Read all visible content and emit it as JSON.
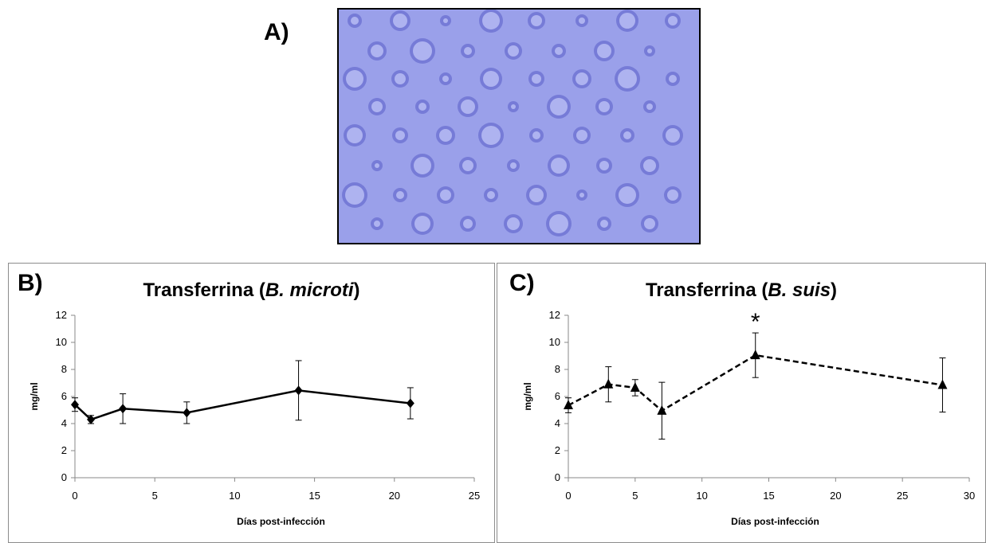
{
  "panels": {
    "a_label": "A)",
    "b_label": "B)",
    "c_label": "C)"
  },
  "gel_color": "#9aa0ea",
  "gel_well_color": "#6a6fd0",
  "chart_data": [
    {
      "type": "line",
      "title": "Transferrina (B. microti)",
      "title_main": "Transferrina (",
      "title_italic": "B. microti",
      "title_end": ")",
      "xlabel": "Días post-infección",
      "ylabel": "mg/ml",
      "xlim": [
        0,
        25
      ],
      "ylim": [
        0,
        12
      ],
      "xticks": [
        0,
        5,
        10,
        15,
        20,
        25
      ],
      "yticks": [
        0,
        2,
        4,
        6,
        8,
        10,
        12
      ],
      "line_style": "solid",
      "marker": "diamond",
      "series": [
        {
          "x": [
            0,
            1,
            3,
            7,
            14,
            21
          ],
          "values": [
            5.4,
            4.3,
            5.1,
            4.8,
            6.45,
            5.5
          ],
          "error": [
            0.5,
            0.3,
            1.1,
            0.8,
            2.2,
            1.15
          ]
        }
      ]
    },
    {
      "type": "line",
      "title": "Transferrina (B. suis)",
      "title_main": "Transferrina (",
      "title_italic": "B. suis",
      "title_end": ")",
      "xlabel": "Días post-infección",
      "ylabel": "mg/ml",
      "xlim": [
        0,
        30
      ],
      "ylim": [
        0,
        12
      ],
      "xticks": [
        0,
        5,
        10,
        15,
        20,
        25,
        30
      ],
      "yticks": [
        0,
        2,
        4,
        6,
        8,
        10,
        12
      ],
      "line_style": "dashed",
      "marker": "triangle",
      "annotation": {
        "text": "*",
        "x": 14
      },
      "series": [
        {
          "x": [
            0,
            3,
            5,
            7,
            14,
            28
          ],
          "values": [
            5.35,
            6.9,
            6.65,
            4.95,
            9.05,
            6.85
          ],
          "error": [
            0.55,
            1.3,
            0.6,
            2.1,
            1.65,
            2.0
          ]
        }
      ]
    }
  ]
}
